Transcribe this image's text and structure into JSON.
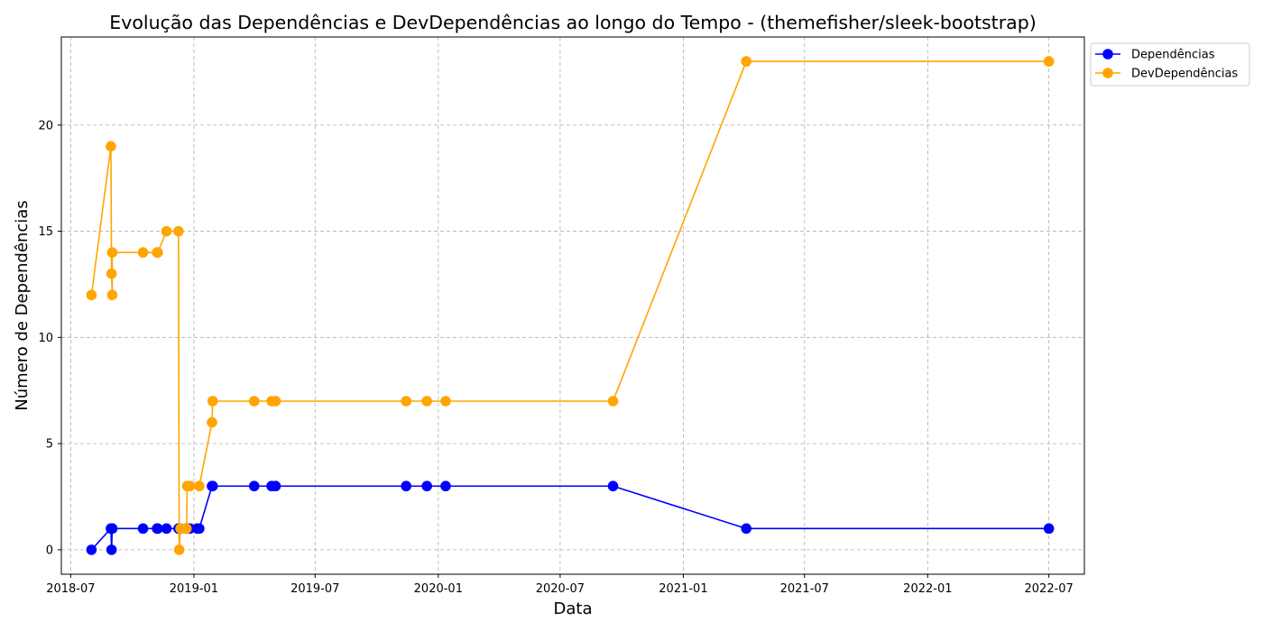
{
  "chart_data": {
    "type": "line",
    "title": "Evolução das Dependências e DevDependências ao longo do Tempo - (themefisher/sleek-bootstrap)",
    "xlabel": "Data",
    "ylabel": "Número de Dependências",
    "x_tick_labels": [
      "2018-07",
      "2019-01",
      "2019-07",
      "2020-01",
      "2020-07",
      "2021-01",
      "2021-07",
      "2022-01",
      "2022-07"
    ],
    "y_ticks": [
      0,
      5,
      10,
      15,
      20
    ],
    "ylim": [
      -1.15,
      24.15
    ],
    "xlim": [
      "2018-06-17",
      "2022-08-23"
    ],
    "grid": true,
    "legend_position": "outside-top-right",
    "series": [
      {
        "name": "Dependências",
        "color": "#0000ff",
        "marker": "circle",
        "points": [
          {
            "x": "2018-08-01",
            "y": 0
          },
          {
            "x": "2018-08-30",
            "y": 1
          },
          {
            "x": "2018-08-31",
            "y": 0
          },
          {
            "x": "2018-09-01",
            "y": 1
          },
          {
            "x": "2018-09-01",
            "y": 1
          },
          {
            "x": "2018-10-17",
            "y": 1
          },
          {
            "x": "2018-11-07",
            "y": 1
          },
          {
            "x": "2018-11-08",
            "y": 1
          },
          {
            "x": "2018-11-21",
            "y": 1
          },
          {
            "x": "2018-12-09",
            "y": 1
          },
          {
            "x": "2018-12-10",
            "y": 1
          },
          {
            "x": "2018-12-12",
            "y": 1
          },
          {
            "x": "2018-12-21",
            "y": 1
          },
          {
            "x": "2018-12-26",
            "y": 1
          },
          {
            "x": "2019-01-06",
            "y": 1
          },
          {
            "x": "2019-01-09",
            "y": 1
          },
          {
            "x": "2019-01-28",
            "y": 3
          },
          {
            "x": "2019-01-29",
            "y": 3
          },
          {
            "x": "2019-04-01",
            "y": 3
          },
          {
            "x": "2019-04-27",
            "y": 3
          },
          {
            "x": "2019-05-03",
            "y": 3
          },
          {
            "x": "2019-11-14",
            "y": 3
          },
          {
            "x": "2019-12-15",
            "y": 3
          },
          {
            "x": "2020-01-12",
            "y": 3
          },
          {
            "x": "2020-09-18",
            "y": 3
          },
          {
            "x": "2021-04-05",
            "y": 1
          },
          {
            "x": "2022-07-01",
            "y": 1
          }
        ]
      },
      {
        "name": "DevDependências",
        "color": "#ffa500",
        "marker": "circle",
        "points": [
          {
            "x": "2018-08-01",
            "y": 12
          },
          {
            "x": "2018-08-30",
            "y": 19
          },
          {
            "x": "2018-08-31",
            "y": 13
          },
          {
            "x": "2018-09-01",
            "y": 12
          },
          {
            "x": "2018-09-01",
            "y": 14
          },
          {
            "x": "2018-10-17",
            "y": 14
          },
          {
            "x": "2018-11-07",
            "y": 14
          },
          {
            "x": "2018-11-08",
            "y": 14
          },
          {
            "x": "2018-11-21",
            "y": 15
          },
          {
            "x": "2018-12-09",
            "y": 15
          },
          {
            "x": "2018-12-10",
            "y": 0
          },
          {
            "x": "2018-12-12",
            "y": 1
          },
          {
            "x": "2018-12-21",
            "y": 1
          },
          {
            "x": "2018-12-22",
            "y": 3
          },
          {
            "x": "2018-12-26",
            "y": 3
          },
          {
            "x": "2019-01-09",
            "y": 3
          },
          {
            "x": "2019-01-28",
            "y": 6
          },
          {
            "x": "2019-01-29",
            "y": 7
          },
          {
            "x": "2019-04-01",
            "y": 7
          },
          {
            "x": "2019-04-27",
            "y": 7
          },
          {
            "x": "2019-05-03",
            "y": 7
          },
          {
            "x": "2019-11-14",
            "y": 7
          },
          {
            "x": "2019-12-15",
            "y": 7
          },
          {
            "x": "2020-01-12",
            "y": 7
          },
          {
            "x": "2020-09-18",
            "y": 7
          },
          {
            "x": "2021-04-05",
            "y": 23
          },
          {
            "x": "2022-07-01",
            "y": 23
          }
        ]
      }
    ]
  }
}
